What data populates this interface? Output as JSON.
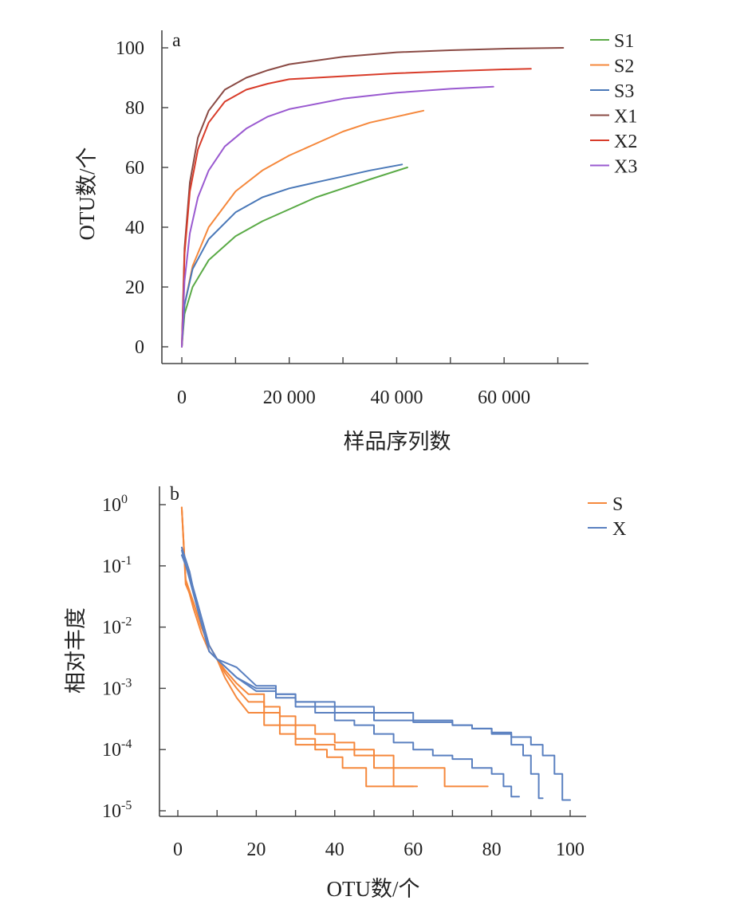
{
  "chart_data": [
    {
      "panel": "a",
      "type": "line",
      "xlabel": "样品序列数",
      "ylabel": "OTU数/个",
      "xlim": [
        0,
        75000
      ],
      "ylim": [
        0,
        100
      ],
      "xticks": [
        0,
        20000,
        40000,
        60000
      ],
      "xtick_labels": [
        "0",
        "20 000",
        "40 000",
        "60 000"
      ],
      "yticks": [
        0,
        20,
        40,
        60,
        80,
        100
      ],
      "ytick_labels": [
        "0",
        "20",
        "40",
        "60",
        "80",
        "100"
      ],
      "grid": false,
      "legend_position": "top-right",
      "series": [
        {
          "name": "S1",
          "color": "#5aaa46",
          "x": [
            0,
            500,
            2000,
            5000,
            10000,
            15000,
            20000,
            25000,
            30000,
            35000,
            42000
          ],
          "y": [
            0,
            11,
            20,
            29,
            37,
            42,
            46,
            50,
            53,
            56,
            60
          ]
        },
        {
          "name": "S2",
          "color": "#f5883c",
          "x": [
            0,
            500,
            2000,
            5000,
            10000,
            15000,
            20000,
            25000,
            30000,
            35000,
            40000,
            45000
          ],
          "y": [
            0,
            14,
            27,
            40,
            52,
            59,
            64,
            68,
            72,
            75,
            77,
            79
          ]
        },
        {
          "name": "S3",
          "color": "#4a78b8",
          "x": [
            0,
            500,
            2000,
            5000,
            10000,
            15000,
            20000,
            25000,
            30000,
            35000,
            41000
          ],
          "y": [
            0,
            14,
            26,
            36,
            45,
            50,
            53,
            55,
            57,
            59,
            61
          ]
        },
        {
          "name": "X1",
          "color": "#8a4a44",
          "x": [
            0,
            500,
            1500,
            3000,
            5000,
            8000,
            12000,
            16000,
            20000,
            30000,
            40000,
            50000,
            60000,
            71000
          ],
          "y": [
            0,
            33,
            55,
            70,
            79,
            86,
            90,
            92.5,
            94.5,
            97,
            98.5,
            99.2,
            99.7,
            100
          ]
        },
        {
          "name": "X2",
          "color": "#d83c2a",
          "x": [
            0,
            500,
            1500,
            3000,
            5000,
            8000,
            12000,
            16000,
            20000,
            30000,
            40000,
            50000,
            60000,
            65000
          ],
          "y": [
            0,
            31,
            52,
            66,
            75,
            82,
            86,
            88,
            89.5,
            90.5,
            91.5,
            92.2,
            92.8,
            93
          ]
        },
        {
          "name": "X3",
          "color": "#9a5ad0",
          "x": [
            0,
            500,
            1500,
            3000,
            5000,
            8000,
            12000,
            16000,
            20000,
            30000,
            40000,
            50000,
            58000
          ],
          "y": [
            0,
            22,
            38,
            50,
            59,
            67,
            73,
            77,
            79.5,
            83,
            85,
            86.3,
            87
          ]
        }
      ]
    },
    {
      "panel": "b",
      "type": "line",
      "xlabel": "OTU数/个",
      "ylabel": "相对丰度",
      "xlim": [
        -2,
        104
      ],
      "ylim": [
        1.3e-05,
        1.2
      ],
      "yscale": "log",
      "xticks": [
        0,
        20,
        40,
        60,
        80,
        100
      ],
      "xtick_labels": [
        "0",
        "20",
        "40",
        "60",
        "80",
        "100"
      ],
      "yticks": [
        1,
        0.1,
        0.01,
        0.001,
        0.0001,
        1e-05
      ],
      "ytick_base": "10",
      "ytick_exponents": [
        "0",
        "-1",
        "-2",
        "-3",
        "-4",
        "-5"
      ],
      "grid": false,
      "legend_position": "top-right",
      "legend": [
        {
          "name": "S",
          "color": "#f5883c"
        },
        {
          "name": "X",
          "color": "#5a80c0"
        }
      ],
      "series": [
        {
          "group": "S",
          "color": "#f5883c",
          "x": [
            1,
            2,
            4,
            6,
            8,
            10,
            12,
            15,
            18,
            22,
            26,
            30,
            35,
            38,
            42,
            46,
            48,
            50,
            55,
            60
          ],
          "y": [
            0.9,
            0.06,
            0.02,
            0.008,
            0.004,
            0.003,
            0.0015,
            0.0007,
            0.0004,
            0.00025,
            0.00018,
            0.00012,
            0.0001,
            7.5e-05,
            5e-05,
            5e-05,
            2.5e-05,
            2.5e-05,
            2.5e-05,
            2.5e-05
          ]
        },
        {
          "group": "S",
          "color": "#f5883c",
          "x": [
            1,
            2,
            4,
            6,
            8,
            10,
            12,
            15,
            18,
            22,
            26,
            30,
            35,
            40,
            45,
            50,
            53,
            55,
            57,
            61
          ],
          "y": [
            0.9,
            0.05,
            0.025,
            0.01,
            0.005,
            0.003,
            0.0018,
            0.001,
            0.0006,
            0.0004,
            0.00025,
            0.00015,
            0.00012,
            0.0001,
            8e-05,
            5e-05,
            5e-05,
            2.5e-05,
            2.5e-05,
            2.5e-05
          ]
        },
        {
          "group": "S",
          "color": "#f5883c",
          "x": [
            1,
            2,
            4,
            6,
            8,
            10,
            12,
            15,
            18,
            22,
            26,
            30,
            35,
            40,
            45,
            50,
            55,
            58,
            62,
            66,
            68,
            70,
            75,
            79
          ],
          "y": [
            0.9,
            0.06,
            0.025,
            0.01,
            0.005,
            0.003,
            0.002,
            0.0012,
            0.0008,
            0.0005,
            0.00035,
            0.00025,
            0.00018,
            0.00013,
            0.0001,
            8e-05,
            5e-05,
            5e-05,
            5e-05,
            5e-05,
            2.5e-05,
            2.5e-05,
            2.5e-05,
            2.5e-05
          ]
        },
        {
          "group": "X",
          "color": "#5a80c0",
          "x": [
            1,
            3,
            5,
            8,
            10,
            15,
            20,
            25,
            30,
            35,
            40,
            45,
            50,
            55,
            60,
            65,
            70,
            75,
            80,
            83,
            85,
            87
          ],
          "y": [
            0.2,
            0.08,
            0.02,
            0.004,
            0.003,
            0.0015,
            0.001,
            0.0008,
            0.0006,
            0.0004,
            0.0003,
            0.00025,
            0.00018,
            0.00013,
            0.0001,
            8e-05,
            7e-05,
            5e-05,
            4e-05,
            2.5e-05,
            1.7e-05,
            1.7e-05
          ]
        },
        {
          "group": "X",
          "color": "#5a80c0",
          "x": [
            1,
            3,
            5,
            8,
            10,
            15,
            20,
            25,
            30,
            40,
            50,
            60,
            70,
            75,
            80,
            85,
            88,
            90,
            92,
            93
          ],
          "y": [
            0.18,
            0.06,
            0.02,
            0.004,
            0.003,
            0.0015,
            0.0009,
            0.0007,
            0.0005,
            0.0004,
            0.0003,
            0.00028,
            0.00025,
            0.00022,
            0.00018,
            0.00012,
            8e-05,
            4e-05,
            1.6e-05,
            1.6e-05
          ]
        },
        {
          "group": "X",
          "color": "#5a80c0",
          "x": [
            1,
            3,
            5,
            8,
            10,
            15,
            20,
            25,
            30,
            40,
            50,
            60,
            70,
            75,
            80,
            85,
            90,
            93,
            96,
            98,
            100
          ],
          "y": [
            0.15,
            0.07,
            0.025,
            0.005,
            0.003,
            0.0022,
            0.0011,
            0.0008,
            0.0006,
            0.0005,
            0.0004,
            0.0003,
            0.00025,
            0.00022,
            0.00019,
            0.00016,
            0.00012,
            8e-05,
            4e-05,
            1.5e-05,
            1.5e-05
          ]
        }
      ]
    }
  ]
}
